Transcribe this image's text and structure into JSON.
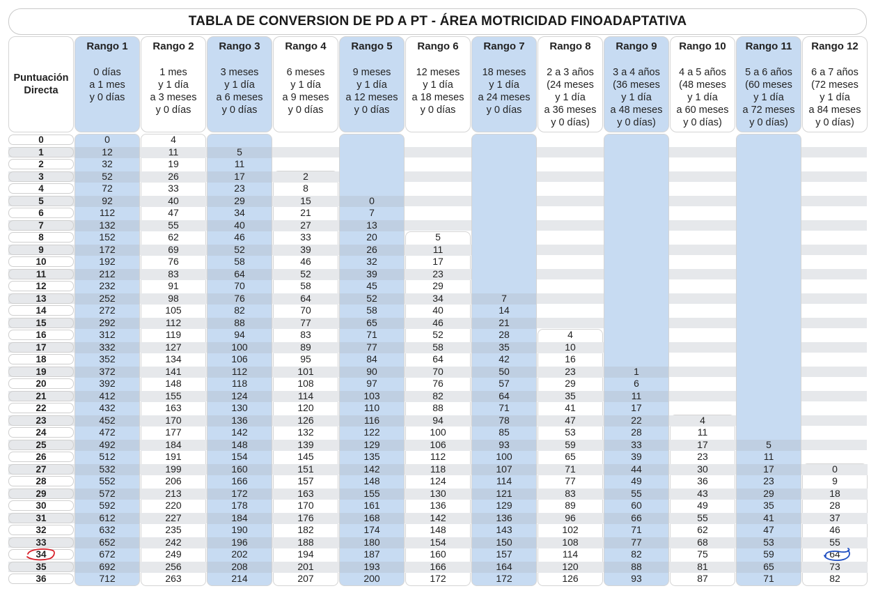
{
  "title": "TABLA DE CONVERSION DE PD A PT - ÁREA MOTRICIDAD FINOADAPTATIVA",
  "pd_header": "Puntuación\nDirecta",
  "ranges": [
    {
      "label": "Rango 1",
      "age": "0 días\na 1 mes\ny 0 días",
      "shade": "blue"
    },
    {
      "label": "Rango 2",
      "age": "1 mes\ny 1 día\na 3 meses\ny 0 días",
      "shade": "white"
    },
    {
      "label": "Rango 3",
      "age": "3 meses\ny 1 día\na 6 meses\ny 0 días",
      "shade": "blue"
    },
    {
      "label": "Rango 4",
      "age": "6 meses\ny 1 día\na 9 meses\ny 0 días",
      "shade": "white"
    },
    {
      "label": "Rango 5",
      "age": "9 meses\ny 1 día\na 12 meses\ny 0 días",
      "shade": "blue"
    },
    {
      "label": "Rango 6",
      "age": "12 meses\ny 1 día\na 18 meses\ny 0 días",
      "shade": "white"
    },
    {
      "label": "Rango 7",
      "age": "18 meses\ny 1 día\na 24 meses\ny 0 días",
      "shade": "blue"
    },
    {
      "label": "Rango 8",
      "age": "2 a 3 años\n(24 meses\ny 1 día\na 36 meses\ny 0 días)",
      "shade": "white"
    },
    {
      "label": "Rango 9",
      "age": "3 a 4 años\n(36 meses\ny 1 día\na 48 meses\ny 0 días)",
      "shade": "blue"
    },
    {
      "label": "Rango 10",
      "age": "4 a 5 años\n(48 meses\ny 1 día\na 60 meses\ny 0 días)",
      "shade": "white"
    },
    {
      "label": "Rango 11",
      "age": "5 a 6 años\n(60 meses\ny 1 día\na 72 meses\ny 0 días)",
      "shade": "blue"
    },
    {
      "label": "Rango 12",
      "age": "6 a 7 años\n(72 meses\ny 1 día\na 84 meses\ny 0 días)",
      "shade": "white"
    }
  ],
  "pd_values": [
    "0",
    "1",
    "2",
    "3",
    "4",
    "5",
    "6",
    "7",
    "8",
    "9",
    "10",
    "11",
    "12",
    "13",
    "14",
    "15",
    "16",
    "17",
    "18",
    "19",
    "20",
    "21",
    "22",
    "23",
    "24",
    "25",
    "26",
    "27",
    "28",
    "29",
    "30",
    "31",
    "32",
    "33",
    "34",
    "35",
    "36"
  ],
  "columns": [
    [
      "0",
      "12",
      "32",
      "52",
      "72",
      "92",
      "112",
      "132",
      "152",
      "172",
      "192",
      "212",
      "232",
      "252",
      "272",
      "292",
      "312",
      "332",
      "352",
      "372",
      "392",
      "412",
      "432",
      "452",
      "472",
      "492",
      "512",
      "532",
      "552",
      "572",
      "592",
      "612",
      "632",
      "652",
      "672",
      "692",
      "712"
    ],
    [
      "4",
      "11",
      "19",
      "26",
      "33",
      "40",
      "47",
      "55",
      "62",
      "69",
      "76",
      "83",
      "91",
      "98",
      "105",
      "112",
      "119",
      "127",
      "134",
      "141",
      "148",
      "155",
      "163",
      "170",
      "177",
      "184",
      "191",
      "199",
      "206",
      "213",
      "220",
      "227",
      "235",
      "242",
      "249",
      "256",
      "263"
    ],
    [
      "",
      "5",
      "11",
      "17",
      "23",
      "29",
      "34",
      "40",
      "46",
      "52",
      "58",
      "64",
      "70",
      "76",
      "82",
      "88",
      "94",
      "100",
      "106",
      "112",
      "118",
      "124",
      "130",
      "136",
      "142",
      "148",
      "154",
      "160",
      "166",
      "172",
      "178",
      "184",
      "190",
      "196",
      "202",
      "208",
      "214"
    ],
    [
      "",
      "",
      "",
      "2",
      "8",
      "15",
      "21",
      "27",
      "33",
      "39",
      "46",
      "52",
      "58",
      "64",
      "70",
      "77",
      "83",
      "89",
      "95",
      "101",
      "108",
      "114",
      "120",
      "126",
      "132",
      "139",
      "145",
      "151",
      "157",
      "163",
      "170",
      "176",
      "182",
      "188",
      "194",
      "201",
      "207"
    ],
    [
      "",
      "",
      "",
      "",
      "",
      "0",
      "7",
      "13",
      "20",
      "26",
      "32",
      "39",
      "45",
      "52",
      "58",
      "65",
      "71",
      "77",
      "84",
      "90",
      "97",
      "103",
      "110",
      "116",
      "122",
      "129",
      "135",
      "142",
      "148",
      "155",
      "161",
      "168",
      "174",
      "180",
      "187",
      "193",
      "200"
    ],
    [
      "",
      "",
      "",
      "",
      "",
      "",
      "",
      "",
      "5",
      "11",
      "17",
      "23",
      "29",
      "34",
      "40",
      "46",
      "52",
      "58",
      "64",
      "70",
      "76",
      "82",
      "88",
      "94",
      "100",
      "106",
      "112",
      "118",
      "124",
      "130",
      "136",
      "142",
      "148",
      "154",
      "160",
      "166",
      "172"
    ],
    [
      "",
      "",
      "",
      "",
      "",
      "",
      "",
      "",
      "",
      "",
      "",
      "",
      "",
      "7",
      "14",
      "21",
      "28",
      "35",
      "42",
      "50",
      "57",
      "64",
      "71",
      "78",
      "85",
      "93",
      "100",
      "107",
      "114",
      "121",
      "129",
      "136",
      "143",
      "150",
      "157",
      "164",
      "172"
    ],
    [
      "",
      "",
      "",
      "",
      "",
      "",
      "",
      "",
      "",
      "",
      "",
      "",
      "",
      "",
      "",
      "",
      "4",
      "10",
      "16",
      "23",
      "29",
      "35",
      "41",
      "47",
      "53",
      "59",
      "65",
      "71",
      "77",
      "83",
      "89",
      "96",
      "102",
      "108",
      "114",
      "120",
      "126"
    ],
    [
      "",
      "",
      "",
      "",
      "",
      "",
      "",
      "",
      "",
      "",
      "",
      "",
      "",
      "",
      "",
      "",
      "",
      "",
      "",
      "1",
      "6",
      "11",
      "17",
      "22",
      "28",
      "33",
      "39",
      "44",
      "49",
      "55",
      "60",
      "66",
      "71",
      "77",
      "82",
      "88",
      "93"
    ],
    [
      "",
      "",
      "",
      "",
      "",
      "",
      "",
      "",
      "",
      "",
      "",
      "",
      "",
      "",
      "",
      "",
      "",
      "",
      "",
      "",
      "",
      "",
      "",
      "4",
      "11",
      "17",
      "23",
      "30",
      "36",
      "43",
      "49",
      "55",
      "62",
      "68",
      "75",
      "81",
      "87"
    ],
    [
      "",
      "",
      "",
      "",
      "",
      "",
      "",
      "",
      "",
      "",
      "",
      "",
      "",
      "",
      "",
      "",
      "",
      "",
      "",
      "",
      "",
      "",
      "",
      "",
      "",
      "5",
      "11",
      "17",
      "23",
      "29",
      "35",
      "41",
      "47",
      "53",
      "59",
      "65",
      "71"
    ],
    [
      "",
      "",
      "",
      "",
      "",
      "",
      "",
      "",
      "",
      "",
      "",
      "",
      "",
      "",
      "",
      "",
      "",
      "",
      "",
      "",
      "",
      "",
      "",
      "",
      "",
      "",
      "",
      "0",
      "9",
      "18",
      "28",
      "37",
      "46",
      "55",
      "64",
      "73",
      "82"
    ]
  ],
  "colors": {
    "blue": "#c7dbf2",
    "grey_band": "#e6e8eb",
    "red_mark": "#d8202a",
    "blue_mark": "#1f4fc2"
  }
}
